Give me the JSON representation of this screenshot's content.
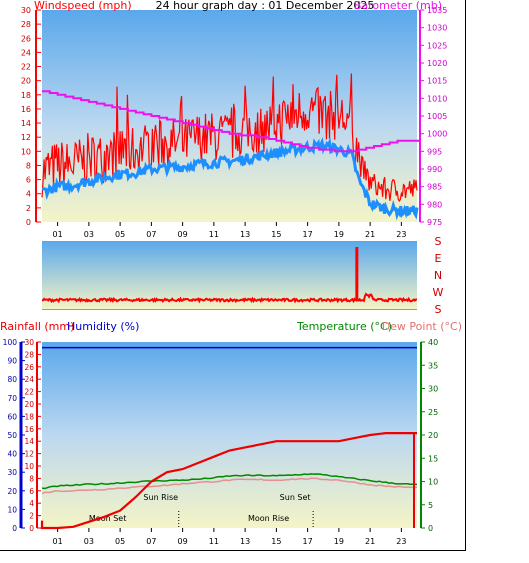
{
  "header": {
    "left_title": "Windspeed (mph)",
    "center_title": "24 hour graph day : 01 December 2025",
    "right_title": "Barometer (mb)"
  },
  "lower_header": {
    "rain_label": "Rainfall (mm)",
    "humidity_label": "Humidity (%)",
    "temp_label": "Temperature (°C)",
    "dew_label": "Dew Point (°C)"
  },
  "colors": {
    "wind": "#ff0000",
    "wind_avg": "#1e8fff",
    "baro": "#ee11ee",
    "rain": "#ee0000",
    "humidity": "#0000cc",
    "temp": "#008800",
    "dew": "#e69090",
    "sky_top": "#5aa8ec",
    "sky_bottom": "#f4f4c6"
  },
  "chart_data": [
    {
      "type": "line",
      "x_ticks": [
        "01",
        "03",
        "05",
        "07",
        "09",
        "11",
        "13",
        "15",
        "17",
        "19",
        "21",
        "23"
      ],
      "y_left_ticks": [
        0,
        2,
        4,
        6,
        8,
        10,
        12,
        14,
        16,
        18,
        20,
        22,
        24,
        26,
        28,
        30
      ],
      "y_right_ticks": [
        975,
        980,
        985,
        990,
        995,
        1000,
        1005,
        1010,
        1015,
        1020,
        1025,
        1030,
        1035
      ],
      "ylim_left": [
        0,
        30
      ],
      "ylim_right": [
        975,
        1035
      ],
      "series": [
        {
          "name": "Windspeed (mph)",
          "x": [
            0,
            1,
            2,
            3,
            4,
            5,
            6,
            7,
            8,
            9,
            10,
            11,
            12,
            13,
            14,
            15,
            16,
            17,
            18,
            19,
            19.8,
            20.3,
            21,
            22,
            23,
            24
          ],
          "values": [
            6,
            7,
            7,
            8,
            8,
            9,
            9,
            10,
            10,
            10,
            11,
            11,
            11,
            12,
            12,
            13,
            14,
            15,
            14,
            14,
            13,
            8,
            5,
            4,
            4,
            4
          ]
        },
        {
          "name": "Windspeed average",
          "x": [
            0,
            1,
            2,
            3,
            4,
            5,
            6,
            7,
            8,
            9,
            10,
            11,
            12,
            13,
            14,
            15,
            16,
            17,
            18,
            19,
            19.8,
            20.3,
            21,
            22,
            23,
            24
          ],
          "values": [
            4.3,
            5,
            5.2,
            5.8,
            6.3,
            6.8,
            7,
            7.5,
            7.7,
            7.8,
            8.2,
            8.4,
            8.6,
            8.9,
            9.4,
            9.8,
            10.2,
            10.6,
            10.8,
            10.3,
            9.6,
            5.8,
            2.7,
            1.8,
            1.6,
            1.6
          ]
        },
        {
          "name": "Barometer (mb)",
          "x": [
            0,
            1,
            2,
            3,
            4,
            5,
            6,
            7,
            8,
            9,
            10,
            11,
            12,
            13,
            14,
            15,
            16,
            17,
            18,
            19,
            20,
            21,
            22,
            23,
            24
          ],
          "values": [
            1012,
            1011,
            1010,
            1009,
            1008,
            1007,
            1006,
            1005,
            1004,
            1003,
            1002,
            1001,
            1000,
            999.5,
            999,
            998,
            997,
            996,
            995.5,
            995,
            995,
            996,
            997,
            998,
            998
          ]
        }
      ]
    },
    {
      "type": "line",
      "x_ticks": [
        "01",
        "03",
        "05",
        "07",
        "09",
        "11",
        "13",
        "15",
        "17",
        "19",
        "21",
        "23"
      ],
      "y_ticks": [
        "S",
        "E",
        "N",
        "W",
        "S"
      ],
      "series": [
        {
          "name": "Wind direction",
          "x": [
            0,
            2,
            4,
            6,
            8,
            10,
            12,
            14,
            16,
            18,
            20,
            20.1,
            20.2,
            20.4,
            21,
            22,
            23,
            24
          ],
          "values": [
            9,
            9,
            9,
            9,
            9,
            9,
            9,
            9,
            9,
            9,
            9,
            62,
            9,
            9,
            12,
            9,
            9,
            9
          ]
        }
      ]
    },
    {
      "type": "line",
      "x_ticks": [
        "01",
        "03",
        "05",
        "07",
        "09",
        "11",
        "13",
        "15",
        "17",
        "19",
        "21",
        "23"
      ],
      "y_rain_ticks": [
        0,
        2,
        4,
        6,
        8,
        10,
        12,
        14,
        16,
        18,
        20,
        22,
        24,
        26,
        28,
        30
      ],
      "y_humidity_ticks": [
        0,
        10,
        20,
        30,
        40,
        50,
        60,
        70,
        80,
        90,
        100
      ],
      "y_temp_ticks": [
        0,
        5,
        10,
        15,
        20,
        25,
        30,
        35,
        40
      ],
      "ylim_rain": [
        0,
        30
      ],
      "ylim_temp": [
        0,
        40
      ],
      "annotations": [
        {
          "text": "Moon Set",
          "x": 4.2
        },
        {
          "text": "Sun Rise",
          "x": 7.6
        },
        {
          "text": "Moon Rise",
          "x": 14.5
        },
        {
          "text": "Sun Set",
          "x": 16.2
        }
      ],
      "series": [
        {
          "name": "Rainfall (mm)",
          "x": [
            0,
            1,
            2,
            3,
            4,
            5,
            6,
            7,
            8,
            9,
            10,
            11,
            12,
            13,
            14,
            15,
            16,
            17,
            18,
            19,
            20,
            21,
            22,
            23,
            24
          ],
          "values": [
            0,
            0,
            0.2,
            1,
            1.8,
            2.8,
            5,
            7.5,
            9,
            9.5,
            10.5,
            11.5,
            12.5,
            13,
            13.5,
            14,
            14,
            14,
            14,
            14,
            14.5,
            15,
            15.3,
            15.3,
            15.3
          ]
        },
        {
          "name": "Temperature (°C)",
          "x": [
            0,
            1,
            2,
            3,
            4,
            5,
            6,
            7,
            8,
            9,
            10,
            11,
            12,
            13,
            14,
            15,
            16,
            17,
            18,
            19,
            20,
            21,
            22,
            23,
            24
          ],
          "values": [
            8.5,
            9,
            9.2,
            9.4,
            9.5,
            9.7,
            9.9,
            10.1,
            10.2,
            10.3,
            10.5,
            10.8,
            11.2,
            11.3,
            11.3,
            11.2,
            11.4,
            11.6,
            11.5,
            11,
            10.6,
            10.2,
            9.8,
            9.5,
            9.3
          ]
        },
        {
          "name": "Dew Point (°C)",
          "x": [
            0,
            1,
            2,
            3,
            4,
            5,
            6,
            7,
            8,
            9,
            10,
            11,
            12,
            13,
            14,
            15,
            16,
            17,
            18,
            19,
            20,
            21,
            22,
            23,
            24
          ],
          "values": [
            7.5,
            8,
            8,
            8.2,
            8.3,
            8.6,
            8.8,
            9,
            9.2,
            9.5,
            9.8,
            10,
            10.3,
            10.4,
            10.4,
            10.3,
            10.5,
            10.6,
            10.5,
            10.3,
            9.8,
            9.3,
            9.0,
            8.8,
            8.7
          ]
        }
      ]
    }
  ]
}
